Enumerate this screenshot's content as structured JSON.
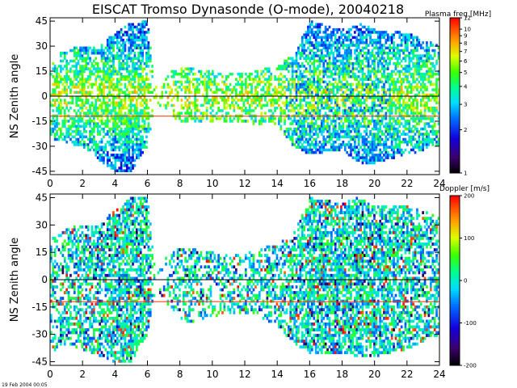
{
  "title": "EISCAT Tromso Dynasonde (O-mode),  20040218",
  "footer": "19 Feb 2004 00:05",
  "colors": {
    "zero_line": "#000000",
    "ref_line": "#ff2a00"
  },
  "chart_data": [
    {
      "type": "heatmap",
      "ylabel": "NS Zenith angle",
      "x_ticks": [
        0,
        2,
        4,
        6,
        8,
        10,
        12,
        14,
        16,
        18,
        20,
        22,
        24
      ],
      "y_ticks": [
        45,
        30,
        15,
        0,
        -15,
        -30,
        -45
      ],
      "xlim": [
        0,
        24
      ],
      "ylim": [
        -47,
        47
      ],
      "reference_lines": [
        0,
        -12
      ],
      "colorbar": {
        "label": "Plasma freq [MHz]",
        "scale": "log",
        "range": [
          1,
          12
        ],
        "ticks": [
          "12",
          "10",
          "9",
          "8",
          "7",
          "6",
          "5",
          "4",
          "3",
          "2",
          "1"
        ],
        "tick_values": [
          12,
          10,
          9,
          8,
          7,
          6,
          5,
          4,
          3,
          2,
          1
        ]
      },
      "activity": [
        {
          "t": 0.0,
          "hi": 22,
          "lo": -25,
          "d": 0.45
        },
        {
          "t": 1.0,
          "hi": 28,
          "lo": -28,
          "d": 0.55
        },
        {
          "t": 2.0,
          "hi": 30,
          "lo": -30,
          "d": 0.6
        },
        {
          "t": 3.0,
          "hi": 30,
          "lo": -38,
          "d": 0.6
        },
        {
          "t": 4.0,
          "hi": 38,
          "lo": -45,
          "d": 0.7
        },
        {
          "t": 5.0,
          "hi": 44,
          "lo": -45,
          "d": 0.75
        },
        {
          "t": 6.0,
          "hi": 45,
          "lo": -30,
          "d": 0.7
        },
        {
          "t": 6.5,
          "hi": 5,
          "lo": -5,
          "d": 0.15
        },
        {
          "t": 7.0,
          "hi": 12,
          "lo": -10,
          "d": 0.3
        },
        {
          "t": 8.0,
          "hi": 18,
          "lo": -15,
          "d": 0.5
        },
        {
          "t": 10.0,
          "hi": 15,
          "lo": -16,
          "d": 0.5
        },
        {
          "t": 12.0,
          "hi": 14,
          "lo": -16,
          "d": 0.5
        },
        {
          "t": 14.0,
          "hi": 18,
          "lo": -18,
          "d": 0.55
        },
        {
          "t": 15.0,
          "hi": 25,
          "lo": -30,
          "d": 0.6
        },
        {
          "t": 16.0,
          "hi": 45,
          "lo": -35,
          "d": 0.7
        },
        {
          "t": 18.0,
          "hi": 40,
          "lo": -32,
          "d": 0.7
        },
        {
          "t": 19.0,
          "hi": 45,
          "lo": -40,
          "d": 0.7
        },
        {
          "t": 20.0,
          "hi": 40,
          "lo": -40,
          "d": 0.7
        },
        {
          "t": 22.0,
          "hi": 38,
          "lo": -35,
          "d": 0.65
        },
        {
          "t": 24.0,
          "hi": 30,
          "lo": -30,
          "d": 0.55
        }
      ]
    },
    {
      "type": "heatmap",
      "ylabel": "NS Zenith angle",
      "x_ticks": [
        0,
        2,
        4,
        6,
        8,
        10,
        12,
        14,
        16,
        18,
        20,
        22,
        24
      ],
      "y_ticks": [
        45,
        30,
        15,
        0,
        -15,
        -30,
        -45
      ],
      "xlim": [
        0,
        24
      ],
      "ylim": [
        -47,
        47
      ],
      "reference_lines": [
        0,
        -12
      ],
      "colorbar": {
        "label": "Doppler [m/s]",
        "scale": "linear",
        "range": [
          -200,
          200
        ],
        "ticks": [
          "200",
          "100",
          "0",
          "-100",
          "-200"
        ],
        "tick_values": [
          200,
          100,
          0,
          -100,
          -200
        ]
      },
      "activity": [
        {
          "t": 0.0,
          "hi": 22,
          "lo": -40,
          "d": 0.4
        },
        {
          "t": 1.0,
          "hi": 28,
          "lo": -35,
          "d": 0.5
        },
        {
          "t": 2.0,
          "hi": 30,
          "lo": -38,
          "d": 0.55
        },
        {
          "t": 3.0,
          "hi": 30,
          "lo": -42,
          "d": 0.6
        },
        {
          "t": 4.0,
          "hi": 38,
          "lo": -45,
          "d": 0.7
        },
        {
          "t": 5.0,
          "hi": 45,
          "lo": -45,
          "d": 0.75
        },
        {
          "t": 6.0,
          "hi": 45,
          "lo": -30,
          "d": 0.7
        },
        {
          "t": 6.5,
          "hi": 5,
          "lo": -5,
          "d": 0.1
        },
        {
          "t": 7.0,
          "hi": 12,
          "lo": -10,
          "d": 0.25
        },
        {
          "t": 8.0,
          "hi": 18,
          "lo": -25,
          "d": 0.45
        },
        {
          "t": 10.0,
          "hi": 15,
          "lo": -20,
          "d": 0.45
        },
        {
          "t": 12.0,
          "hi": 14,
          "lo": -18,
          "d": 0.45
        },
        {
          "t": 14.0,
          "hi": 20,
          "lo": -25,
          "d": 0.5
        },
        {
          "t": 15.0,
          "hi": 25,
          "lo": -35,
          "d": 0.6
        },
        {
          "t": 16.0,
          "hi": 45,
          "lo": -40,
          "d": 0.7
        },
        {
          "t": 18.0,
          "hi": 42,
          "lo": -40,
          "d": 0.7
        },
        {
          "t": 19.0,
          "hi": 45,
          "lo": -42,
          "d": 0.7
        },
        {
          "t": 20.0,
          "hi": 40,
          "lo": -42,
          "d": 0.7
        },
        {
          "t": 22.0,
          "hi": 40,
          "lo": -38,
          "d": 0.65
        },
        {
          "t": 24.0,
          "hi": 35,
          "lo": -30,
          "d": 0.55
        }
      ]
    }
  ]
}
